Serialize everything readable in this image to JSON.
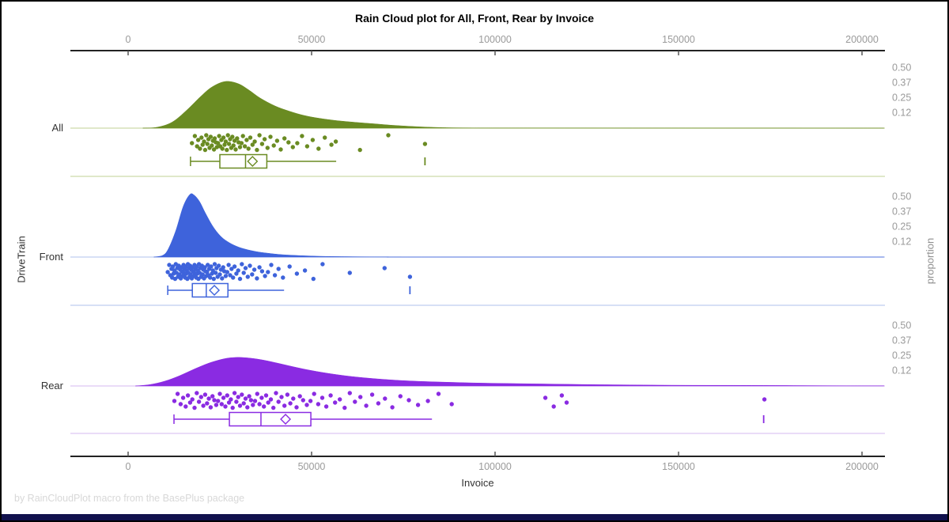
{
  "title": "Rain Cloud plot for All, Front, Rear by Invoice",
  "footnote": "by RainCloudPlot macro from the BasePlus package",
  "x_axis": {
    "label": "Invoice",
    "tick_labels": [
      "0",
      "50000",
      "100000",
      "150000",
      "200000"
    ],
    "tick_values": [
      0,
      50000,
      100000,
      150000,
      200000
    ]
  },
  "left_axis": {
    "label": "DriveTrain"
  },
  "right_axis": {
    "label": "proportion",
    "tick_labels": [
      "0.50",
      "0.37",
      "0.25",
      "0.12"
    ],
    "tick_values": [
      0.5,
      0.375,
      0.25,
      0.125
    ]
  },
  "colors": {
    "title": "#000000",
    "axis_line": "#222222",
    "tick_label": "#9a9a9a",
    "axis_title": "#333333",
    "category_label": "#333333",
    "footnote": "#d8d8d8",
    "bottom_bar": "#11114d"
  },
  "chart_data": {
    "type": "raincloud",
    "title": "Rain Cloud plot for All, Front, Rear by Invoice",
    "xlabel": "Invoice",
    "ylabel_left": "DriveTrain",
    "ylabel_right": "proportion",
    "x_range": [
      0,
      206000
    ],
    "x_ticks": [
      0,
      50000,
      100000,
      150000,
      200000
    ],
    "proportion_ticks": [
      0.5,
      0.375,
      0.25,
      0.125
    ],
    "proportion_tick_labels": [
      "0.50",
      "0.37",
      "0.25",
      "0.12"
    ],
    "jitter_pattern": [
      0.55,
      0.1,
      0.75,
      0.35,
      0.9,
      0.2,
      0.65,
      0.45,
      0.98,
      0.05,
      0.6,
      0.3,
      0.85,
      0.15,
      0.7,
      0.4,
      0.95,
      0.25,
      0.5,
      0.8
    ],
    "groups": [
      {
        "name": "All",
        "color": "#6a8b22",
        "pale_color": "#cdd9ab",
        "density": [
          [
            4000,
            0
          ],
          [
            8000,
            0.008
          ],
          [
            12000,
            0.05
          ],
          [
            16000,
            0.15
          ],
          [
            20000,
            0.27
          ],
          [
            23000,
            0.345
          ],
          [
            26500,
            0.388
          ],
          [
            30000,
            0.37
          ],
          [
            33000,
            0.315
          ],
          [
            36000,
            0.25
          ],
          [
            40000,
            0.185
          ],
          [
            44000,
            0.14
          ],
          [
            48000,
            0.105
          ],
          [
            52000,
            0.082
          ],
          [
            57000,
            0.062
          ],
          [
            62000,
            0.048
          ],
          [
            67000,
            0.036
          ],
          [
            72000,
            0.024
          ],
          [
            78000,
            0.013
          ],
          [
            84000,
            0.006
          ],
          [
            92000,
            0.002
          ],
          [
            110000,
            0.001
          ],
          [
            206000,
            0
          ]
        ],
        "box": {
          "whisker_lo": 17000,
          "q1": 25000,
          "median": 32000,
          "q3": 37800,
          "whisker_hi": 56700,
          "mean": 33900,
          "outliers": [
            80900
          ]
        },
        "point_x": [
          17400,
          18200,
          18800,
          19100,
          19600,
          20000,
          20300,
          20700,
          21000,
          21300,
          21600,
          21900,
          22200,
          22500,
          22800,
          23100,
          23400,
          23600,
          23900,
          24200,
          24500,
          24800,
          25100,
          25400,
          25700,
          26000,
          26300,
          26600,
          26900,
          27200,
          27500,
          27800,
          28100,
          28400,
          28700,
          29000,
          29300,
          29700,
          30100,
          30500,
          30900,
          31300,
          31800,
          32300,
          32800,
          33300,
          33900,
          34500,
          35100,
          35800,
          36500,
          37200,
          38000,
          38800,
          39700,
          40600,
          41600,
          42600,
          43700,
          44900,
          46100,
          47400,
          48800,
          50300,
          51900,
          53600,
          55400,
          56600,
          63200,
          70900,
          80900
        ]
      },
      {
        "name": "Front",
        "color": "#3e63db",
        "pale_color": "#bfcdf0",
        "density": [
          [
            7000,
            0
          ],
          [
            9500,
            0.015
          ],
          [
            11000,
            0.07
          ],
          [
            13000,
            0.22
          ],
          [
            15000,
            0.42
          ],
          [
            16800,
            0.52
          ],
          [
            18000,
            0.515
          ],
          [
            19500,
            0.46
          ],
          [
            21000,
            0.37
          ],
          [
            23000,
            0.26
          ],
          [
            25000,
            0.18
          ],
          [
            27000,
            0.13
          ],
          [
            29500,
            0.09
          ],
          [
            32000,
            0.065
          ],
          [
            35000,
            0.045
          ],
          [
            38000,
            0.032
          ],
          [
            42000,
            0.02
          ],
          [
            47000,
            0.012
          ],
          [
            53000,
            0.006
          ],
          [
            60000,
            0.003
          ],
          [
            70000,
            0.001
          ],
          [
            85000,
            0
          ],
          [
            206000,
            0
          ]
        ],
        "box": {
          "whisker_lo": 10800,
          "q1": 17500,
          "median": 21300,
          "q3": 27200,
          "whisker_hi": 42500,
          "mean": 23500,
          "outliers": [
            76800
          ]
        },
        "point_x": [
          10800,
          11200,
          11500,
          11800,
          12000,
          12200,
          12400,
          12600,
          12800,
          13000,
          13200,
          13400,
          13600,
          13800,
          14000,
          14200,
          14350,
          14500,
          14650,
          14800,
          14950,
          15100,
          15250,
          15400,
          15550,
          15700,
          15850,
          16000,
          16150,
          16300,
          16450,
          16600,
          16750,
          16900,
          17050,
          17200,
          17350,
          17500,
          17650,
          17800,
          17950,
          18100,
          18250,
          18400,
          18550,
          18700,
          18850,
          19000,
          19150,
          19300,
          19500,
          19700,
          19900,
          20100,
          20300,
          20500,
          20700,
          20900,
          21100,
          21300,
          21500,
          21700,
          21900,
          22100,
          22350,
          22600,
          22850,
          23100,
          23350,
          23600,
          23850,
          24100,
          24400,
          24700,
          25000,
          25300,
          25600,
          25900,
          26200,
          26600,
          27000,
          27400,
          27800,
          28200,
          28600,
          29000,
          29500,
          30000,
          30500,
          31000,
          31500,
          32000,
          32600,
          33200,
          33800,
          34400,
          35100,
          35800,
          36500,
          37300,
          38100,
          39000,
          40000,
          41000,
          42200,
          44000,
          46000,
          48200,
          50500,
          53000,
          60400,
          69900,
          76800
        ]
      },
      {
        "name": "Rear",
        "color": "#8a2be2",
        "pale_color": "#ddc7f4",
        "density": [
          [
            2000,
            0
          ],
          [
            6000,
            0.012
          ],
          [
            10000,
            0.04
          ],
          [
            14000,
            0.085
          ],
          [
            18000,
            0.14
          ],
          [
            22000,
            0.19
          ],
          [
            26000,
            0.225
          ],
          [
            29000,
            0.237
          ],
          [
            32000,
            0.235
          ],
          [
            36000,
            0.22
          ],
          [
            40000,
            0.195
          ],
          [
            45000,
            0.16
          ],
          [
            50000,
            0.128
          ],
          [
            56000,
            0.098
          ],
          [
            62000,
            0.075
          ],
          [
            70000,
            0.054
          ],
          [
            78000,
            0.04
          ],
          [
            88000,
            0.03
          ],
          [
            98000,
            0.023
          ],
          [
            110000,
            0.018
          ],
          [
            122000,
            0.013
          ],
          [
            135000,
            0.009
          ],
          [
            150000,
            0.006
          ],
          [
            165000,
            0.005
          ],
          [
            178000,
            0.004
          ],
          [
            192000,
            0.002
          ],
          [
            206000,
            0.001
          ]
        ],
        "box": {
          "whisker_lo": 12500,
          "q1": 27600,
          "median": 36200,
          "q3": 49800,
          "whisker_hi": 82800,
          "mean": 42900,
          "outliers": [
            173200
          ]
        },
        "point_x": [
          12600,
          13500,
          14300,
          15000,
          15700,
          16300,
          16900,
          17500,
          18100,
          18700,
          19300,
          19900,
          20500,
          21000,
          21500,
          22000,
          22500,
          23000,
          23500,
          24000,
          24500,
          25000,
          25500,
          26000,
          26500,
          27000,
          27500,
          28000,
          28500,
          29000,
          29500,
          30000,
          30500,
          31000,
          31500,
          32000,
          32500,
          33000,
          33500,
          34000,
          34600,
          35200,
          35800,
          36400,
          37000,
          37600,
          38200,
          38900,
          39600,
          40300,
          41000,
          41800,
          42600,
          43400,
          44200,
          45000,
          45900,
          46800,
          47700,
          48700,
          49700,
          50700,
          51800,
          52900,
          54000,
          55200,
          56400,
          57700,
          59000,
          60400,
          61800,
          63300,
          64900,
          66500,
          68200,
          70000,
          72000,
          74200,
          76500,
          79000,
          81700,
          84600,
          88200,
          113700,
          116000,
          118200,
          119500,
          173400
        ]
      }
    ]
  }
}
